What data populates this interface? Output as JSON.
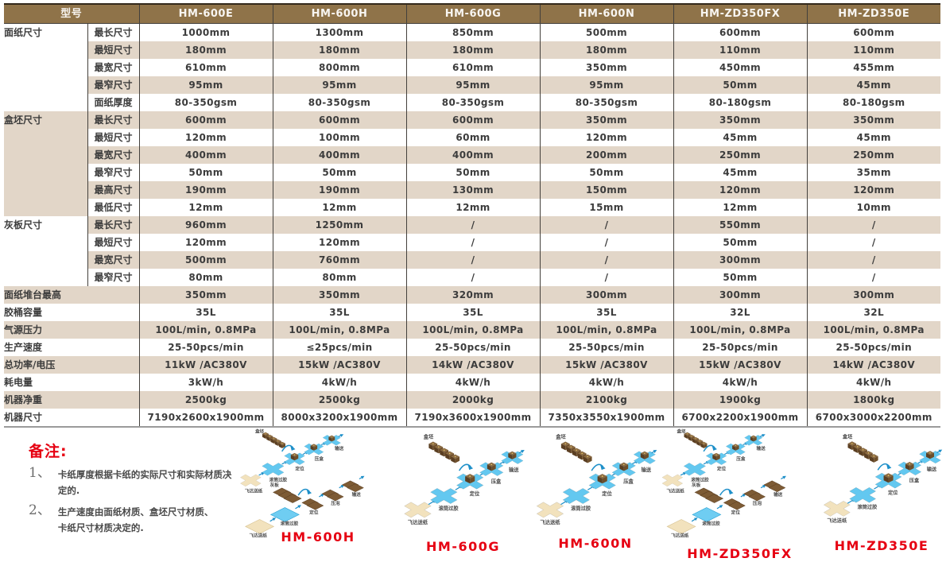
{
  "table": {
    "model_label": "型号",
    "models": [
      "HM-600E",
      "HM-600H",
      "HM-600G",
      "HM-600N",
      "HM-ZD350FX",
      "HM-ZD350E"
    ],
    "groups": [
      {
        "label": "面纸尺寸",
        "bg": "white",
        "rows": [
          {
            "label": "最长尺寸",
            "values": [
              "1000mm",
              "1300mm",
              "850mm",
              "500mm",
              "600mm",
              "600mm"
            ]
          },
          {
            "label": "最短尺寸",
            "values": [
              "180mm",
              "180mm",
              "180mm",
              "180mm",
              "110mm",
              "110mm"
            ]
          },
          {
            "label": "最宽尺寸",
            "values": [
              "610mm",
              "800mm",
              "610mm",
              "350mm",
              "450mm",
              "455mm"
            ]
          },
          {
            "label": "最窄尺寸",
            "values": [
              "95mm",
              "95mm",
              "95mm",
              "95mm",
              "50mm",
              "45mm"
            ]
          },
          {
            "label": "面纸厚度",
            "values": [
              "80-350gsm",
              "80-350gsm",
              "80-350gsm",
              "80-350gsm",
              "80-180gsm",
              "80-180gsm"
            ]
          }
        ]
      },
      {
        "label": "盒坯尺寸",
        "bg": "tan",
        "rows": [
          {
            "label": "最长尺寸",
            "values": [
              "600mm",
              "600mm",
              "600mm",
              "350mm",
              "350mm",
              "350mm"
            ]
          },
          {
            "label": "最短尺寸",
            "values": [
              "120mm",
              "100mm",
              "60mm",
              "120mm",
              "45mm",
              "45mm"
            ]
          },
          {
            "label": "最宽尺寸",
            "values": [
              "400mm",
              "400mm",
              "400mm",
              "200mm",
              "250mm",
              "250mm"
            ]
          },
          {
            "label": "最窄尺寸",
            "values": [
              "50mm",
              "50mm",
              "50mm",
              "50mm",
              "45mm",
              "35mm"
            ]
          },
          {
            "label": "最高尺寸",
            "values": [
              "190mm",
              "190mm",
              "130mm",
              "150mm",
              "120mm",
              "120mm"
            ]
          },
          {
            "label": "最低尺寸",
            "values": [
              "12mm",
              "12mm",
              "12mm",
              "15mm",
              "12mm",
              "10mm"
            ]
          }
        ]
      },
      {
        "label": "灰板尺寸",
        "bg": "white",
        "rows": [
          {
            "label": "最长尺寸",
            "values": [
              "960mm",
              "1250mm",
              "/",
              "/",
              "550mm",
              "/"
            ]
          },
          {
            "label": "最短尺寸",
            "values": [
              "120mm",
              "120mm",
              "/",
              "/",
              "50mm",
              "/"
            ]
          },
          {
            "label": "最宽尺寸",
            "values": [
              "500mm",
              "760mm",
              "/",
              "/",
              "300mm",
              "/"
            ]
          },
          {
            "label": "最窄尺寸",
            "values": [
              "80mm",
              "80mm",
              "/",
              "/",
              "50mm",
              "/"
            ]
          }
        ]
      }
    ],
    "single_rows": [
      {
        "label": "面纸堆台最高",
        "values": [
          "350mm",
          "350mm",
          "320mm",
          "300mm",
          "300mm",
          "300mm"
        ]
      },
      {
        "label": "胶桶容量",
        "values": [
          "35L",
          "35L",
          "35L",
          "35L",
          "32L",
          "32L"
        ]
      },
      {
        "label": "气源压力",
        "values": [
          "100L/min, 0.8MPa",
          "100L/min, 0.8MPa",
          "100L/min, 0.8MPa",
          "100L/min, 0.8MPa",
          "100L/min, 0.8MPa",
          "100L/min, 0.8MPa"
        ]
      },
      {
        "label": "生产速度",
        "values": [
          "25-50pcs/min",
          "≤25pcs/min",
          "25-50pcs/min",
          "25-50pcs/min",
          "25-50pcs/min",
          "25-50pcs/min"
        ]
      },
      {
        "label": "总功率/电压",
        "values": [
          "11kW /AC380V",
          "15kW /AC380V",
          "14kW /AC380V",
          "15kW /AC380V",
          "15kW /AC380V",
          "14kW /AC380V"
        ]
      },
      {
        "label": "耗电量",
        "values": [
          "3kW/h",
          "4kW/h",
          "4kW/h",
          "4kW/h",
          "4kW/h",
          "4kW/h"
        ]
      },
      {
        "label": "机器净重",
        "values": [
          "2500kg",
          "2500kg",
          "2000kg",
          "2100kg",
          "1900kg",
          "1800kg"
        ]
      },
      {
        "label": "机器尺寸",
        "values": [
          "7190x2600x1900mm",
          "8000x3200x1900mm",
          "7190x3600x1900mm",
          "7350x3550x1900mm",
          "6700x2200x1900mm",
          "6700x3000x2200mm"
        ]
      }
    ]
  },
  "notes": {
    "title": "备注:",
    "items": [
      {
        "num": "1、",
        "lines": [
          "卡纸厚度根据卡纸的实际尺寸和实际材质决定的."
        ]
      },
      {
        "num": "2、",
        "lines": [
          "生产速度由面纸材质、盒坯尺寸材质、",
          "卡纸尺寸材质决定的."
        ]
      }
    ]
  },
  "station_labels": {
    "box_blank": "盒坯",
    "convey": "输送",
    "press_box": "压盒",
    "position": "定位",
    "glue_roller": "滚筒过胶",
    "feeder": "飞达送纸",
    "grey_board": "灰板",
    "press_bubble": "压泡"
  },
  "diagrams": [
    {
      "name": "HM-600H",
      "dual": true
    },
    {
      "name": "HM-600G",
      "dual": false
    },
    {
      "name": "HM-600N",
      "dual": false
    },
    {
      "name": "HM-ZD350FX",
      "dual": true
    },
    {
      "name": "HM-ZD350E",
      "dual": false
    }
  ],
  "colors": {
    "header_brown": "#8f7349",
    "row_tan": "#e2d6c8",
    "grid_line": "#43403c",
    "accent_red": "#e60012",
    "diagram_blue": "#63c8f0",
    "diagram_cream": "#f2e2bd",
    "diagram_wood": "#7d5b35",
    "arrow_blue": "#1d8fc9"
  }
}
